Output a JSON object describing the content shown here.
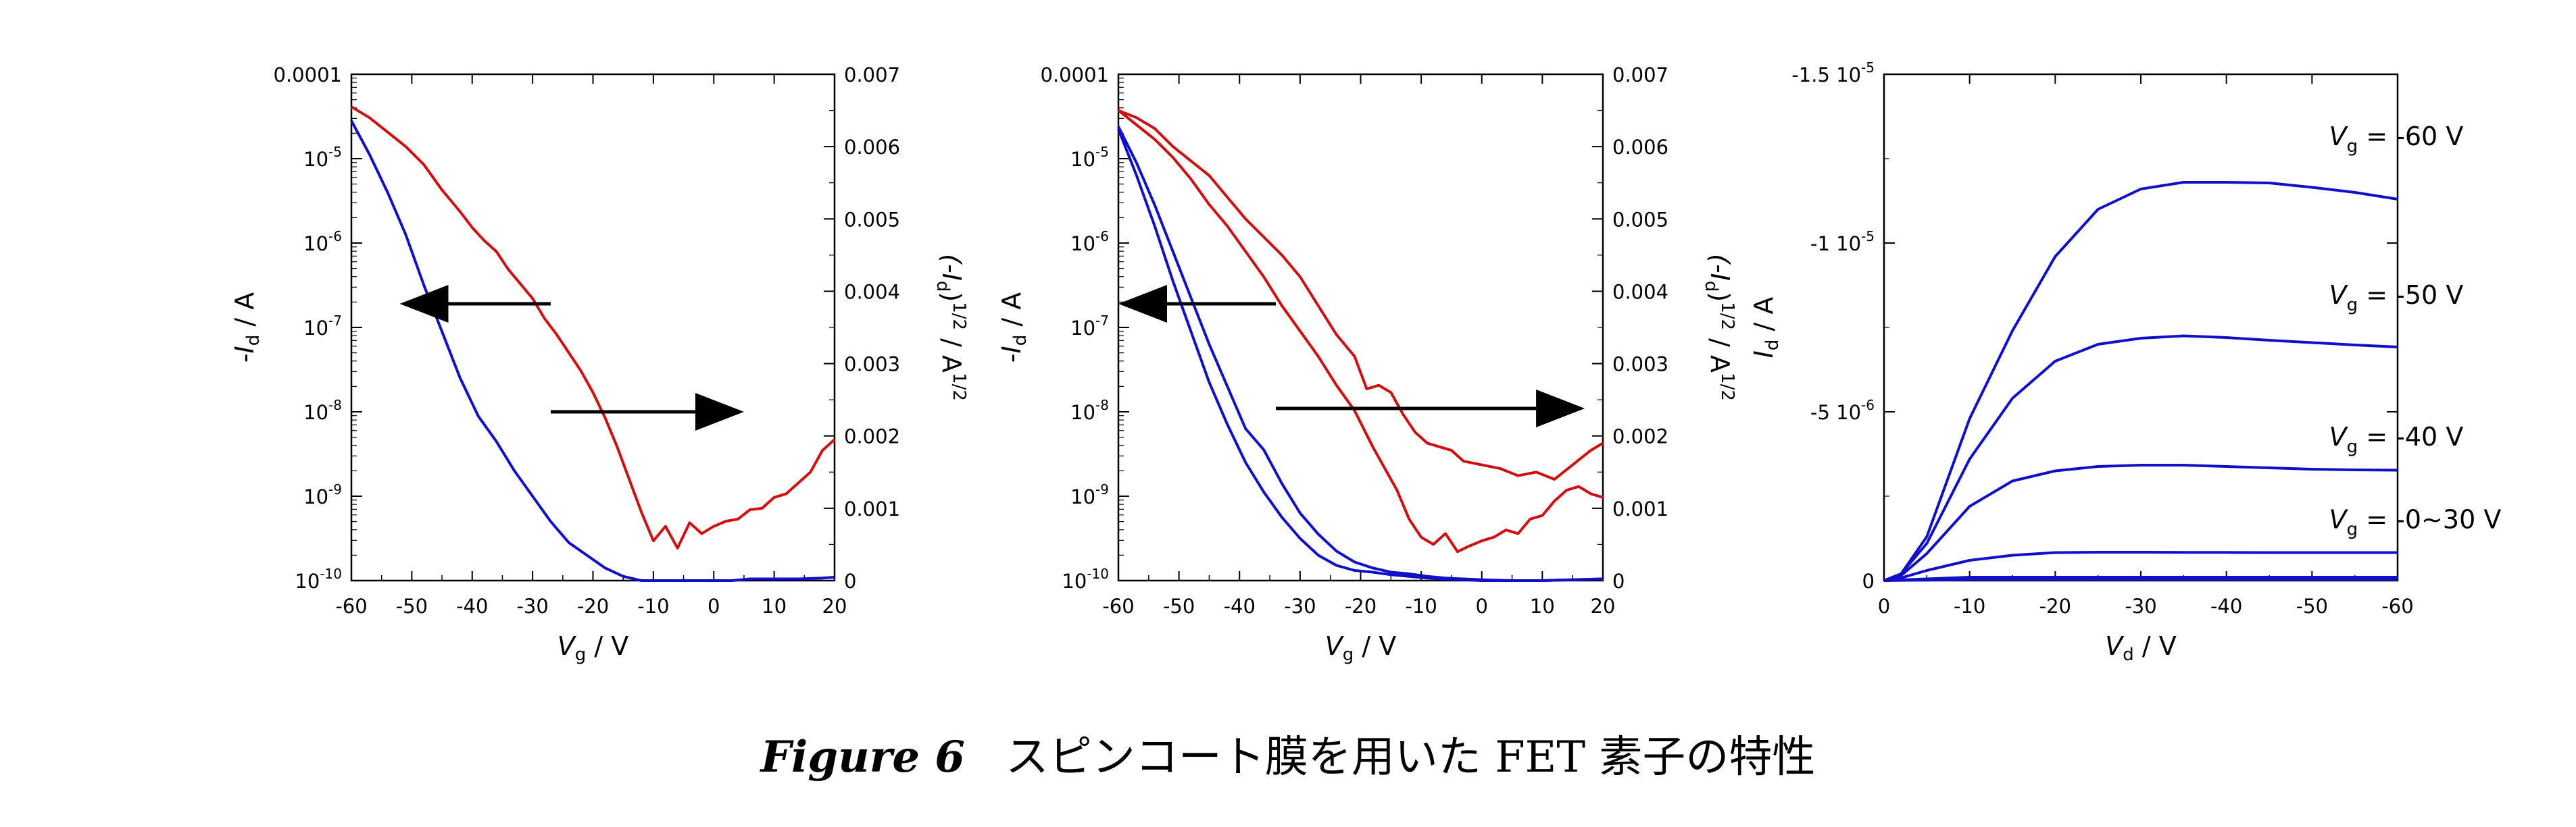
{
  "caption": {
    "figure": "Figure 6",
    "text": "スピンコート膜を用いた FET 素子の特性"
  },
  "chart_data": [
    {
      "type": "line",
      "x_label": {
        "main": "V",
        "sub": "g",
        "unit": " / V"
      },
      "y_left_label": {
        "pre": "-",
        "main": "I",
        "sub": "d",
        "unit": " / A"
      },
      "y_right_label": {
        "main": "(-I",
        "sub": "d",
        "post": ")",
        "sup": "1/2",
        "unit": " / A",
        "unitsup": "1/2"
      },
      "xlim": [
        -60,
        20
      ],
      "x_ticks": [
        -60,
        -50,
        -40,
        -30,
        -20,
        -10,
        0,
        10,
        20
      ],
      "y_left_log_range": [
        -10,
        -4
      ],
      "y_left_ticks": [
        {
          "exp": -4,
          "mant": "0.0001",
          "sup": ""
        },
        {
          "exp": -5,
          "mant": "10",
          "sup": "-5"
        },
        {
          "exp": -6,
          "mant": "10",
          "sup": "-6"
        },
        {
          "exp": -7,
          "mant": "10",
          "sup": "-7"
        },
        {
          "exp": -8,
          "mant": "10",
          "sup": "-8"
        },
        {
          "exp": -9,
          "mant": "10",
          "sup": "-9"
        },
        {
          "exp": -10,
          "mant": "10",
          "sup": "-10"
        }
      ],
      "y_right_lim": [
        0,
        0.007
      ],
      "y_right_ticks": [
        "0",
        "0.001",
        "0.002",
        "0.003",
        "0.004",
        "0.005",
        "0.006",
        "0.007"
      ],
      "arrows": [
        {
          "direction": "left",
          "x_from": -27,
          "x_to": -52,
          "y_exp": -6.72
        },
        {
          "direction": "right",
          "x_from": -27,
          "x_to": 5,
          "y_exp": -8.0
        }
      ],
      "series": [
        {
          "axis": "left-log",
          "color": "#1010c8",
          "x": [
            -60,
            -57,
            -54,
            -51,
            -48,
            -45,
            -42,
            -39,
            -36,
            -33,
            -30,
            -27,
            -24,
            -21,
            -18,
            -15,
            -12,
            -9,
            -6,
            -3,
            0,
            3,
            6,
            10,
            14,
            18,
            20
          ],
          "log_y": [
            -4.55,
            -4.95,
            -5.4,
            -5.9,
            -6.5,
            -7.05,
            -7.6,
            -8.05,
            -8.35,
            -8.7,
            -9.0,
            -9.3,
            -9.55,
            -9.7,
            -9.85,
            -9.95,
            -10.0,
            -10.0,
            -10.0,
            -10.0,
            -10.0,
            -10.0,
            -9.98,
            -9.98,
            -9.98,
            -9.97,
            -9.96
          ]
        },
        {
          "axis": "right-sqrt",
          "color": "#d01010",
          "x": [
            -60,
            -57,
            -54,
            -51,
            -48,
            -45,
            -42,
            -40,
            -38,
            -36,
            -34,
            -32,
            -30,
            -28,
            -26,
            -24,
            -22,
            -20,
            -18,
            -16,
            -14,
            -12,
            -10,
            -8,
            -6,
            -4,
            -2,
            0,
            2,
            4,
            6,
            8,
            10,
            12,
            14,
            16,
            18,
            20
          ],
          "y": [
            0.00655,
            0.0064,
            0.0062,
            0.006,
            0.00575,
            0.0054,
            0.0051,
            0.00488,
            0.0047,
            0.00455,
            0.0043,
            0.0041,
            0.0039,
            0.00362,
            0.0034,
            0.00315,
            0.0029,
            0.0026,
            0.00225,
            0.00185,
            0.0014,
            0.00095,
            0.00055,
            0.00075,
            0.00045,
            0.0008,
            0.00065,
            0.00075,
            0.00082,
            0.00085,
            0.00098,
            0.001,
            0.00115,
            0.0012,
            0.00135,
            0.0015,
            0.0018,
            0.00195
          ]
        }
      ]
    },
    {
      "type": "line",
      "x_label": {
        "main": "V",
        "sub": "g",
        "unit": " / V"
      },
      "y_left_label": {
        "pre": "-",
        "main": "I",
        "sub": "d",
        "unit": " / A"
      },
      "y_right_label": {
        "main": "(-I",
        "sub": "d",
        "post": ")",
        "sup": "1/2",
        "unit": " / A",
        "unitsup": "1/2"
      },
      "xlim": [
        -60,
        20
      ],
      "x_ticks": [
        -60,
        -50,
        -40,
        -30,
        -20,
        -10,
        0,
        10,
        20
      ],
      "y_left_log_range": [
        -10,
        -4
      ],
      "y_left_ticks": [
        {
          "exp": -4,
          "mant": "0.0001",
          "sup": ""
        },
        {
          "exp": -5,
          "mant": "10",
          "sup": "-5"
        },
        {
          "exp": -6,
          "mant": "10",
          "sup": "-6"
        },
        {
          "exp": -7,
          "mant": "10",
          "sup": "-7"
        },
        {
          "exp": -8,
          "mant": "10",
          "sup": "-8"
        },
        {
          "exp": -9,
          "mant": "10",
          "sup": "-9"
        },
        {
          "exp": -10,
          "mant": "10",
          "sup": "-10"
        }
      ],
      "y_right_lim": [
        0,
        0.007
      ],
      "y_right_ticks": [
        "0",
        "0.001",
        "0.002",
        "0.003",
        "0.004",
        "0.005",
        "0.006",
        "0.007"
      ],
      "arrows": [
        {
          "direction": "left",
          "x_from": -34,
          "x_to": -60,
          "y_exp": -6.72
        },
        {
          "direction": "right",
          "x_from": -34,
          "x_to": 17,
          "y_exp": -7.96
        }
      ],
      "series": [
        {
          "axis": "left-log",
          "color": "#1010c8",
          "x": [
            -60,
            -57,
            -54,
            -51,
            -48,
            -45,
            -42,
            -39,
            -36,
            -33,
            -30,
            -27,
            -24,
            -21,
            -18,
            -15,
            -12,
            -9,
            -6,
            -3,
            0,
            5,
            10,
            15,
            20
          ],
          "log_y": [
            -4.65,
            -5.2,
            -5.8,
            -6.45,
            -7.05,
            -7.65,
            -8.15,
            -8.6,
            -8.95,
            -9.25,
            -9.5,
            -9.7,
            -9.82,
            -9.88,
            -9.9,
            -9.93,
            -9.95,
            -9.97,
            -9.98,
            -9.99,
            -10.0,
            -10.0,
            -10.0,
            -9.99,
            -9.98
          ]
        },
        {
          "axis": "left-log",
          "color": "#1010c8",
          "x": [
            -60,
            -57,
            -54,
            -51,
            -48,
            -45,
            -42,
            -39,
            -36,
            -33,
            -30,
            -27,
            -24,
            -21,
            -18,
            -15,
            -12,
            -9,
            -6,
            -3,
            0,
            5,
            10,
            15,
            20
          ],
          "log_y": [
            -4.62,
            -5.05,
            -5.55,
            -6.1,
            -6.65,
            -7.2,
            -7.7,
            -8.2,
            -8.45,
            -8.85,
            -9.2,
            -9.45,
            -9.65,
            -9.78,
            -9.85,
            -9.9,
            -9.92,
            -9.95,
            -9.97,
            -9.98,
            -9.99,
            -10.0,
            -10.0,
            -9.99,
            -9.98
          ]
        },
        {
          "axis": "right-sqrt",
          "color": "#d01010",
          "x": [
            -60,
            -57,
            -54,
            -51,
            -48,
            -45,
            -42,
            -39,
            -36,
            -33,
            -30,
            -27,
            -24,
            -21,
            -18,
            -16,
            -14,
            -12,
            -10,
            -8,
            -6,
            -4,
            -2,
            0,
            2,
            4,
            6,
            8,
            10,
            12,
            14,
            16,
            18,
            20
          ],
          "y": [
            0.0065,
            0.0063,
            0.0061,
            0.00585,
            0.00555,
            0.0052,
            0.0049,
            0.00455,
            0.0042,
            0.0038,
            0.00345,
            0.0031,
            0.0027,
            0.00235,
            0.00185,
            0.00155,
            0.00125,
            0.00085,
            0.0006,
            0.0005,
            0.00065,
            0.0004,
            0.00048,
            0.00055,
            0.0006,
            0.0007,
            0.00065,
            0.00085,
            0.0009,
            0.0011,
            0.00125,
            0.0013,
            0.0012,
            0.00115
          ]
        },
        {
          "axis": "right-sqrt",
          "color": "#d01010",
          "x": [
            -60,
            -57,
            -54,
            -51,
            -48,
            -45,
            -42,
            -39,
            -36,
            -33,
            -30,
            -27,
            -24,
            -21,
            -19,
            -17,
            -15,
            -13,
            -11,
            -9,
            -7,
            -5,
            -3,
            0,
            3,
            6,
            9,
            12,
            15,
            18,
            20
          ],
          "y": [
            0.0065,
            0.0064,
            0.00625,
            0.006,
            0.0058,
            0.0056,
            0.0053,
            0.005,
            0.00475,
            0.0045,
            0.0042,
            0.0038,
            0.0034,
            0.0031,
            0.00265,
            0.0027,
            0.0026,
            0.0023,
            0.00205,
            0.0019,
            0.00185,
            0.0018,
            0.00165,
            0.0016,
            0.00155,
            0.00145,
            0.0015,
            0.0014,
            0.0016,
            0.0018,
            0.0019
          ]
        }
      ]
    },
    {
      "type": "line",
      "x_label": {
        "main": "V",
        "sub": "d",
        "unit": " / V"
      },
      "y_left_label": {
        "pre": "",
        "main": "I",
        "sub": "d",
        "unit": " / A"
      },
      "xlim": [
        0,
        -60
      ],
      "x_ticks": [
        0,
        -10,
        -20,
        -30,
        -40,
        -50,
        -60
      ],
      "ylim": [
        0,
        -1.5e-05
      ],
      "y_ticks": [
        {
          "value": -1.5e-05,
          "mant": "-1.5 10",
          "sup": "-5"
        },
        {
          "value": -1e-05,
          "mant": "-1 10",
          "sup": "-5"
        },
        {
          "value": -5e-06,
          "mant": "-5 10",
          "sup": "-6"
        },
        {
          "value": 0,
          "mant": "0",
          "sup": ""
        }
      ],
      "series": [
        {
          "name_main": "V",
          "name_sub": "g",
          "name_rest": " = -60 V",
          "color": "#1010c8",
          "label_at": [
            -52,
            -1.29e-05
          ],
          "x": [
            0,
            -2,
            -5,
            -10,
            -15,
            -20,
            -25,
            -30,
            -35,
            -40,
            -45,
            -50,
            -55,
            -60
          ],
          "y": [
            0,
            -2e-07,
            -1.3e-06,
            -4.8e-06,
            -7.4e-06,
            -9.6e-06,
            -1.1e-05,
            -1.16e-05,
            -1.18e-05,
            -1.18e-05,
            -1.178e-05,
            -1.165e-05,
            -1.15e-05,
            -1.13e-05
          ]
        },
        {
          "name_main": "V",
          "name_sub": "g",
          "name_rest": " = -50 V",
          "color": "#1010c8",
          "label_at": [
            -52,
            -8.2e-06
          ],
          "x": [
            0,
            -2,
            -5,
            -10,
            -15,
            -20,
            -25,
            -30,
            -35,
            -40,
            -45,
            -50,
            -55,
            -60
          ],
          "y": [
            0,
            -2e-07,
            -1.1e-06,
            -3.6e-06,
            -5.4e-06,
            -6.5e-06,
            -7e-06,
            -7.18e-06,
            -7.25e-06,
            -7.2e-06,
            -7.12e-06,
            -7.05e-06,
            -6.98e-06,
            -6.92e-06
          ]
        },
        {
          "name_main": "V",
          "name_sub": "g",
          "name_rest": " = -40 V",
          "color": "#1010c8",
          "label_at": [
            -52,
            -4e-06
          ],
          "x": [
            0,
            -2,
            -5,
            -10,
            -15,
            -20,
            -25,
            -30,
            -35,
            -40,
            -45,
            -50,
            -55,
            -60
          ],
          "y": [
            0,
            -1.5e-07,
            -8e-07,
            -2.2e-06,
            -2.95e-06,
            -3.25e-06,
            -3.38e-06,
            -3.42e-06,
            -3.42e-06,
            -3.38e-06,
            -3.34e-06,
            -3.3e-06,
            -3.28e-06,
            -3.27e-06
          ]
        },
        {
          "name_main": "V",
          "name_sub": "g",
          "name_rest": " = -0~30 V",
          "color": "#1010c8",
          "label_at": [
            -52,
            -1.55e-06
          ],
          "x": [
            0,
            -2,
            -5,
            -10,
            -15,
            -20,
            -25,
            -30,
            -35,
            -40,
            -45,
            -50,
            -55,
            -60
          ],
          "y": [
            0,
            -8e-08,
            -3e-07,
            -6e-07,
            -7.5e-07,
            -8.3e-07,
            -8.4e-07,
            -8.4e-07,
            -8.35e-07,
            -8.35e-07,
            -8.3e-07,
            -8.3e-07,
            -8.3e-07,
            -8.3e-07
          ]
        },
        {
          "color": "#1010c8",
          "label_at": null,
          "x": [
            0,
            -10,
            -20,
            -30,
            -40,
            -50,
            -60
          ],
          "y": [
            0,
            -1e-07,
            -1e-07,
            -1e-07,
            -1e-07,
            -1e-07,
            -1e-07
          ]
        },
        {
          "color": "#1010c8",
          "label_at": null,
          "x": [
            0,
            -10,
            -20,
            -30,
            -40,
            -50,
            -60
          ],
          "y": [
            0,
            -3e-08,
            -3e-08,
            -3e-08,
            -3e-08,
            -3e-08,
            -3e-08
          ]
        }
      ]
    }
  ]
}
